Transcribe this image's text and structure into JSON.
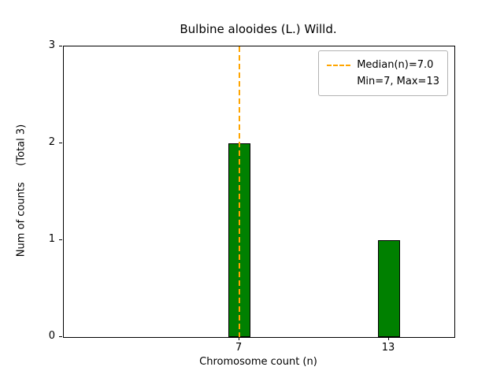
{
  "chart_data": {
    "type": "bar",
    "title": "Bulbine alooides (L.) Willd.",
    "xlabel": "Chromosome count (n)",
    "ylabel": "Num of counts     (Total 3)",
    "categories": [
      7,
      13
    ],
    "values": [
      2,
      1
    ],
    "total": 3,
    "bar_width": 0.9,
    "bar_color": "#008000",
    "bar_edge_color": "#000000",
    "xlim": [
      -0.05,
      15.62
    ],
    "ylim": [
      0,
      3
    ],
    "xticks": [
      7,
      13
    ],
    "yticks": [
      0,
      1,
      2,
      3
    ],
    "grid": false,
    "median_line": {
      "x": 7.0,
      "color": "#ffa500",
      "style": "dashed"
    },
    "min": 7,
    "max": 13,
    "legend": {
      "position": "upper-right",
      "entries": [
        {
          "handle": "dashed-orange-line",
          "label": "Median(n)=7.0"
        },
        {
          "handle": "none",
          "label": "Min=7, Max=13"
        }
      ]
    }
  }
}
